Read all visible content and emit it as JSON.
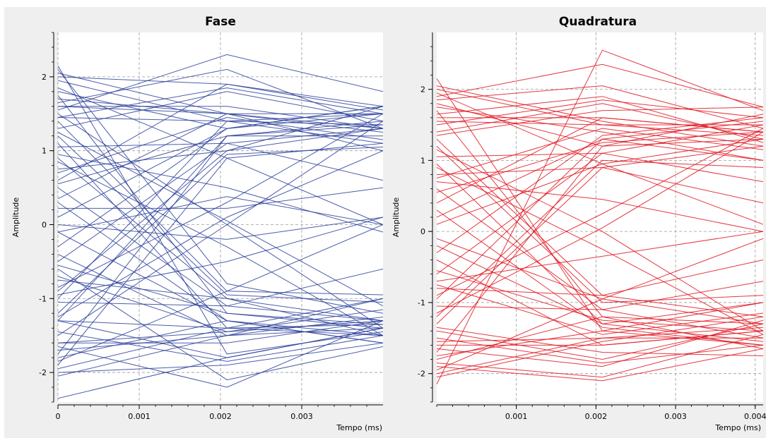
{
  "chart_data": [
    {
      "type": "line",
      "title": "Fase",
      "xlabel": "Tempo (ms)",
      "ylabel": "Amplitude",
      "xlim": [
        0,
        0.004
      ],
      "ylim": [
        -2.4,
        2.6
      ],
      "xticks": [
        "0",
        "0.001",
        "0.002",
        "0.003"
      ],
      "yticks": [
        "2",
        "1",
        "0",
        "-1",
        "-2"
      ],
      "grid": true,
      "color": "#2b3f9a",
      "traces": [
        [
          -2.35,
          -1.8,
          -1.4
        ],
        [
          2.15,
          -1.75,
          -1.45
        ],
        [
          1.55,
          2.3,
          1.8
        ],
        [
          0.22,
          0.22,
          0.5
        ],
        [
          -1.6,
          -1.45,
          -1.3
        ],
        [
          1.6,
          1.5,
          1.5
        ],
        [
          -1.3,
          1.2,
          1.2
        ],
        [
          1.4,
          -0.9,
          -0.95
        ],
        [
          -0.1,
          0.38,
          0.0
        ],
        [
          0.0,
          -0.2,
          0.1
        ],
        [
          1.45,
          1.4,
          1.35
        ],
        [
          -1.3,
          -1.4,
          -1.35
        ],
        [
          0.6,
          1.9,
          1.55
        ],
        [
          -0.6,
          -2.1,
          -1.65
        ],
        [
          -1.9,
          0.9,
          1.1
        ],
        [
          2.1,
          -0.8,
          -1.2
        ],
        [
          1.8,
          1.3,
          1.6
        ],
        [
          -1.8,
          -1.3,
          -1.6
        ],
        [
          0.9,
          -1.0,
          -1.3
        ],
        [
          -0.9,
          1.0,
          1.3
        ],
        [
          1.65,
          2.1,
          1.3
        ],
        [
          -1.65,
          -2.2,
          -1.3
        ],
        [
          1.25,
          0.05,
          -1.1
        ],
        [
          -1.25,
          0.1,
          1.0
        ],
        [
          0.35,
          1.5,
          1.3
        ],
        [
          -0.4,
          -1.5,
          -1.4
        ],
        [
          1.95,
          1.4,
          1.5
        ],
        [
          -1.95,
          -1.4,
          -1.5
        ],
        [
          1.1,
          -1.4,
          -1.0
        ],
        [
          -1.0,
          1.4,
          1.1
        ],
        [
          0.75,
          1.0,
          1.6
        ],
        [
          -0.75,
          -1.0,
          -1.5
        ],
        [
          1.5,
          0.0,
          -1.4
        ],
        [
          -1.5,
          0.0,
          1.4
        ],
        [
          2.0,
          1.9,
          1.6
        ],
        [
          -2.0,
          -1.9,
          -1.6
        ],
        [
          0.5,
          -1.1,
          -1.3
        ],
        [
          -0.5,
          1.1,
          1.3
        ],
        [
          1.3,
          1.8,
          1.4
        ],
        [
          -1.3,
          -1.8,
          -1.4
        ],
        [
          0.95,
          0.5,
          -0.1
        ],
        [
          -0.95,
          -0.5,
          0.1
        ],
        [
          1.7,
          1.5,
          1.0
        ],
        [
          -1.7,
          -1.5,
          -1.0
        ],
        [
          0.1,
          1.3,
          1.5
        ],
        [
          -0.1,
          -1.3,
          -1.5
        ],
        [
          1.2,
          -0.95,
          -1.05
        ],
        [
          -1.2,
          0.95,
          1.05
        ],
        [
          1.85,
          0.9,
          0.0
        ],
        [
          -1.85,
          -0.9,
          0.0
        ],
        [
          0.7,
          1.45,
          1.15
        ],
        [
          -0.7,
          -1.45,
          -1.15
        ],
        [
          1.6,
          1.6,
          1.3
        ],
        [
          -1.6,
          -1.6,
          -1.3
        ],
        [
          0.3,
          -1.3,
          -1.6
        ],
        [
          -0.3,
          1.3,
          1.6
        ],
        [
          1.05,
          1.1,
          0.6
        ],
        [
          -1.05,
          -1.1,
          -0.6
        ],
        [
          2.05,
          1.5,
          1.25
        ],
        [
          -2.05,
          -1.5,
          -1.25
        ],
        [
          0.85,
          -0.3,
          -1.5
        ],
        [
          -0.85,
          0.3,
          1.5
        ],
        [
          1.45,
          1.85,
          1.5
        ],
        [
          -1.45,
          -1.85,
          -1.5
        ],
        [
          0.55,
          1.2,
          1.35
        ],
        [
          -0.55,
          -1.2,
          -1.35
        ],
        [
          1.75,
          -1.2,
          -1.4
        ],
        [
          -1.75,
          1.2,
          1.4
        ]
      ]
    },
    {
      "type": "line",
      "title": "Quadratura",
      "xlabel": "Tempo (ms)",
      "ylabel": "Amplitude",
      "xlim": [
        0,
        0.0041
      ],
      "ylim": [
        -2.4,
        2.8
      ],
      "xticks": [
        "0.001",
        "0.002",
        "0.003",
        "0.004"
      ],
      "yticks": [
        "2",
        "1",
        "0",
        "-1",
        "-2"
      ],
      "grid": true,
      "color": "#e0141e",
      "traces": [
        [
          2.15,
          -1.4,
          -1.6
        ],
        [
          -2.15,
          2.55,
          1.7
        ],
        [
          1.9,
          2.35,
          1.75
        ],
        [
          -1.9,
          -2.1,
          -1.65
        ],
        [
          0.7,
          0.45,
          0.0
        ],
        [
          -0.7,
          -0.35,
          0.0
        ],
        [
          1.55,
          1.5,
          1.35
        ],
        [
          -1.55,
          -1.5,
          -1.35
        ],
        [
          1.3,
          -0.9,
          -1.2
        ],
        [
          -1.3,
          0.9,
          1.2
        ],
        [
          0.4,
          1.6,
          1.4
        ],
        [
          -0.4,
          -1.6,
          -1.4
        ],
        [
          1.8,
          1.2,
          1.65
        ],
        [
          -1.8,
          -1.2,
          -1.65
        ],
        [
          0.95,
          -1.3,
          -1.0
        ],
        [
          -0.95,
          1.3,
          1.0
        ],
        [
          1.65,
          1.9,
          1.25
        ],
        [
          -1.65,
          -1.9,
          -1.25
        ],
        [
          1.15,
          0.0,
          -1.4
        ],
        [
          -1.15,
          0.05,
          1.4
        ],
        [
          2.0,
          1.5,
          1.5
        ],
        [
          -2.0,
          -1.5,
          -1.5
        ],
        [
          0.6,
          -1.1,
          -1.5
        ],
        [
          -0.6,
          1.1,
          1.5
        ],
        [
          1.4,
          1.8,
          1.3
        ],
        [
          -1.4,
          -1.8,
          -1.3
        ],
        [
          0.8,
          0.9,
          0.4
        ],
        [
          -0.8,
          -0.9,
          -0.4
        ],
        [
          1.75,
          1.4,
          1.0
        ],
        [
          -1.75,
          -1.4,
          -1.0
        ],
        [
          0.2,
          1.3,
          1.55
        ],
        [
          -0.2,
          -1.3,
          -1.55
        ],
        [
          1.2,
          -1.0,
          -0.9
        ],
        [
          -1.2,
          1.0,
          0.9
        ],
        [
          1.95,
          0.95,
          0.1
        ],
        [
          -1.95,
          -0.95,
          -0.1
        ],
        [
          0.75,
          1.45,
          1.15
        ],
        [
          -0.75,
          -1.45,
          -1.15
        ],
        [
          1.6,
          1.6,
          1.4
        ],
        [
          -1.6,
          -1.6,
          -1.4
        ],
        [
          0.3,
          -1.35,
          -1.6
        ],
        [
          -0.3,
          1.35,
          1.6
        ],
        [
          1.05,
          1.1,
          0.7
        ],
        [
          -1.05,
          -1.1,
          -0.7
        ],
        [
          2.05,
          1.55,
          1.2
        ],
        [
          -2.05,
          -1.55,
          -1.2
        ],
        [
          0.9,
          -0.25,
          -1.45
        ],
        [
          -0.9,
          0.25,
          1.45
        ],
        [
          1.5,
          1.85,
          1.6
        ],
        [
          -1.5,
          -1.85,
          -1.6
        ],
        [
          0.55,
          1.25,
          1.4
        ],
        [
          -0.55,
          -1.25,
          -1.4
        ],
        [
          1.7,
          -1.2,
          -1.3
        ],
        [
          -1.7,
          1.2,
          1.3
        ],
        [
          1.35,
          1.7,
          1.75
        ],
        [
          -1.35,
          -1.7,
          -1.75
        ],
        [
          0.1,
          0.95,
          1.3
        ],
        [
          -0.1,
          -0.95,
          -1.3
        ],
        [
          1.85,
          2.05,
          1.45
        ],
        [
          -1.85,
          -2.05,
          -1.45
        ]
      ]
    }
  ]
}
